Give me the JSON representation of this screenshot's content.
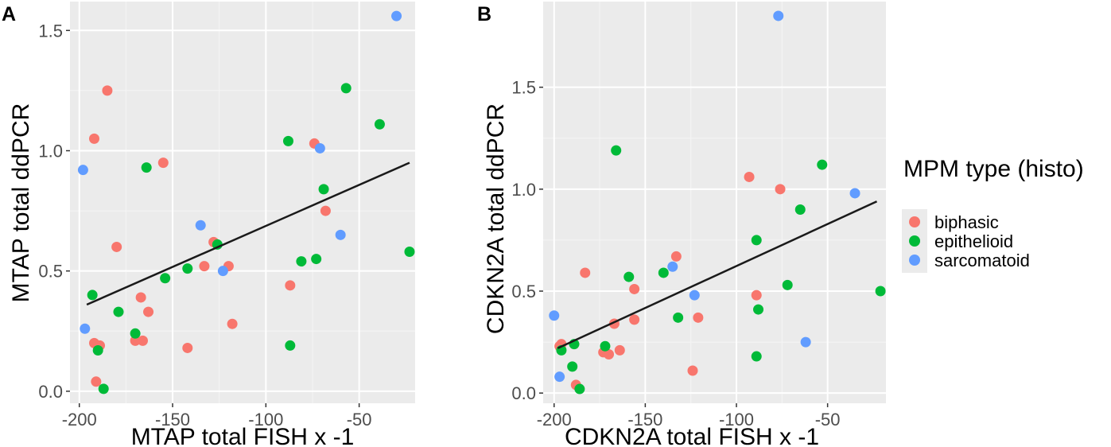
{
  "chart_data": [
    {
      "panel_label": "A",
      "type": "scatter",
      "title": "",
      "xlabel": "MTAP total FISH x -1",
      "ylabel": "MTAP total ddPCR",
      "xlim": [
        -205,
        -20
      ],
      "ylim": [
        -0.05,
        1.62
      ],
      "xticks": [
        -200,
        -150,
        -100,
        -50
      ],
      "xtick_labels": [
        "-200",
        "-150",
        "-100",
        "-50"
      ],
      "yticks": [
        0,
        0.5,
        1.0,
        1.5
      ],
      "ytick_labels": [
        "0.0",
        "0.5",
        "1.0",
        "1.5"
      ],
      "grid": true,
      "series": [
        {
          "name": "biphasic",
          "points": [
            {
              "x": -185,
              "y": 1.25
            },
            {
              "x": -192,
              "y": 1.05
            },
            {
              "x": -180,
              "y": 0.6
            },
            {
              "x": -155,
              "y": 0.95
            },
            {
              "x": -167,
              "y": 0.39
            },
            {
              "x": -163,
              "y": 0.33
            },
            {
              "x": -170,
              "y": 0.21
            },
            {
              "x": -166,
              "y": 0.21
            },
            {
              "x": -192,
              "y": 0.2
            },
            {
              "x": -189,
              "y": 0.19
            },
            {
              "x": -191,
              "y": 0.04
            },
            {
              "x": -142,
              "y": 0.18
            },
            {
              "x": -133,
              "y": 0.52
            },
            {
              "x": -128,
              "y": 0.62
            },
            {
              "x": -120,
              "y": 0.52
            },
            {
              "x": -118,
              "y": 0.28
            },
            {
              "x": -87,
              "y": 0.44
            },
            {
              "x": -74,
              "y": 1.03
            },
            {
              "x": -68,
              "y": 0.75
            }
          ]
        },
        {
          "name": "epithelioid",
          "points": [
            {
              "x": -164,
              "y": 0.93
            },
            {
              "x": -193,
              "y": 0.4
            },
            {
              "x": -179,
              "y": 0.33
            },
            {
              "x": -170,
              "y": 0.24
            },
            {
              "x": -190,
              "y": 0.17
            },
            {
              "x": -187,
              "y": 0.01
            },
            {
              "x": -154,
              "y": 0.47
            },
            {
              "x": -142,
              "y": 0.51
            },
            {
              "x": -126,
              "y": 0.61
            },
            {
              "x": -88,
              "y": 1.04
            },
            {
              "x": -81,
              "y": 0.54
            },
            {
              "x": -73,
              "y": 0.55
            },
            {
              "x": -69,
              "y": 0.84
            },
            {
              "x": -87,
              "y": 0.19
            },
            {
              "x": -57,
              "y": 1.26
            },
            {
              "x": -39,
              "y": 1.11
            },
            {
              "x": -23,
              "y": 0.58
            }
          ]
        },
        {
          "name": "sarcomatoid",
          "points": [
            {
              "x": -198,
              "y": 0.92
            },
            {
              "x": -197,
              "y": 0.26
            },
            {
              "x": -135,
              "y": 0.69
            },
            {
              "x": -123,
              "y": 0.5
            },
            {
              "x": -71,
              "y": 1.01
            },
            {
              "x": -60,
              "y": 0.65
            },
            {
              "x": -30,
              "y": 1.56
            }
          ]
        }
      ],
      "trend_line": {
        "x": [
          -196,
          -23
        ],
        "y": [
          0.36,
          0.95
        ]
      }
    },
    {
      "panel_label": "B",
      "type": "scatter",
      "title": "",
      "xlabel": "CDKN2A total FISH x -1",
      "ylabel": "CDKN2A total ddPCR",
      "xlim": [
        -206,
        -18
      ],
      "ylim": [
        -0.05,
        1.92
      ],
      "xticks": [
        -200,
        -150,
        -100,
        -50
      ],
      "xtick_labels": [
        "-200",
        "-150",
        "-100",
        "-50"
      ],
      "yticks": [
        0,
        0.5,
        1.0,
        1.5
      ],
      "ytick_labels": [
        "0.0",
        "0.5",
        "1.0",
        "1.5"
      ],
      "grid": true,
      "series": [
        {
          "name": "biphasic",
          "points": [
            {
              "x": -183,
              "y": 0.59
            },
            {
              "x": -196,
              "y": 0.24
            },
            {
              "x": -197,
              "y": 0.23
            },
            {
              "x": -188,
              "y": 0.04
            },
            {
              "x": -173,
              "y": 0.2
            },
            {
              "x": -170,
              "y": 0.19
            },
            {
              "x": -167,
              "y": 0.34
            },
            {
              "x": -164,
              "y": 0.21
            },
            {
              "x": -156,
              "y": 0.51
            },
            {
              "x": -156,
              "y": 0.36
            },
            {
              "x": -133,
              "y": 0.67
            },
            {
              "x": -124,
              "y": 0.11
            },
            {
              "x": -121,
              "y": 0.37
            },
            {
              "x": -93,
              "y": 1.06
            },
            {
              "x": -89,
              "y": 0.48
            },
            {
              "x": -76,
              "y": 1.0
            }
          ]
        },
        {
          "name": "epithelioid",
          "points": [
            {
              "x": -166,
              "y": 1.19
            },
            {
              "x": -159,
              "y": 0.57
            },
            {
              "x": -140,
              "y": 0.59
            },
            {
              "x": -132,
              "y": 0.37
            },
            {
              "x": -172,
              "y": 0.23
            },
            {
              "x": -196,
              "y": 0.21
            },
            {
              "x": -189,
              "y": 0.24
            },
            {
              "x": -190,
              "y": 0.13
            },
            {
              "x": -186,
              "y": 0.02
            },
            {
              "x": -89,
              "y": 0.75
            },
            {
              "x": -88,
              "y": 0.41
            },
            {
              "x": -89,
              "y": 0.18
            },
            {
              "x": -72,
              "y": 0.53
            },
            {
              "x": -65,
              "y": 0.9
            },
            {
              "x": -53,
              "y": 1.12
            },
            {
              "x": -21,
              "y": 0.5
            }
          ]
        },
        {
          "name": "sarcomatoid",
          "points": [
            {
              "x": -200,
              "y": 0.38
            },
            {
              "x": -197,
              "y": 0.08
            },
            {
              "x": -135,
              "y": 0.62
            },
            {
              "x": -123,
              "y": 0.48
            },
            {
              "x": -77,
              "y": 1.85
            },
            {
              "x": -62,
              "y": 0.25
            },
            {
              "x": -35,
              "y": 0.98
            }
          ]
        }
      ],
      "trend_line": {
        "x": [
          -198,
          -23
        ],
        "y": [
          0.22,
          0.94
        ]
      }
    }
  ],
  "legend": {
    "title": "MPM type (histo)",
    "items": [
      {
        "label": "biphasic",
        "color": "#F8766D"
      },
      {
        "label": "epithelioid",
        "color": "#00BA38"
      },
      {
        "label": "sarcomatoid",
        "color": "#619CFF"
      }
    ]
  },
  "colors": {
    "biphasic": "#F8766D",
    "epithelioid": "#00BA38",
    "sarcomatoid": "#619CFF",
    "panel_background": "#EBEBEB",
    "grid_major": "#FFFFFF",
    "trend_line": "#1A1A1A"
  }
}
